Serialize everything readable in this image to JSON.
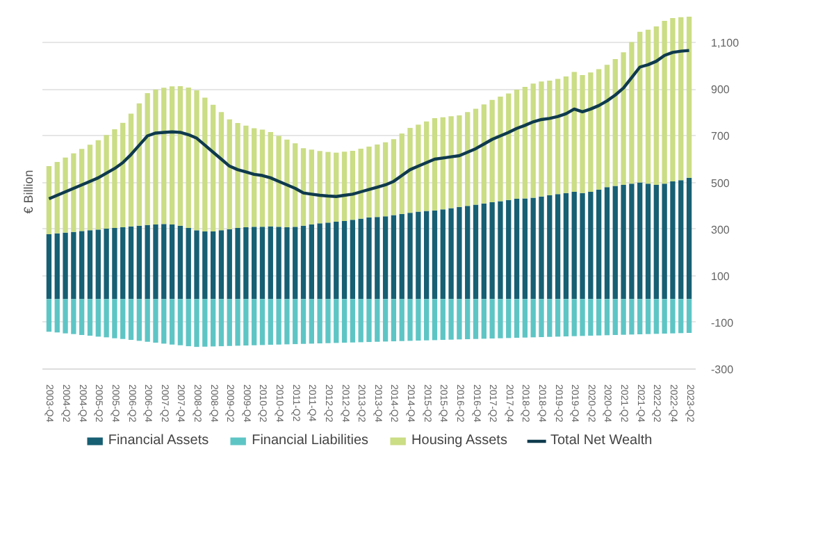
{
  "chart_data": {
    "type": "bar",
    "stacked": true,
    "ylabel": "€ Billion",
    "categories": [
      "2003-Q4",
      null,
      "2004-Q2",
      null,
      "2004-Q4",
      null,
      "2005-Q2",
      null,
      "2005-Q4",
      null,
      "2006-Q2",
      null,
      "2006-Q4",
      null,
      "2007-Q2",
      null,
      "2007-Q4",
      null,
      "2008-Q2",
      null,
      "2008-Q4",
      null,
      "2009-Q2",
      null,
      "2009-Q4",
      null,
      "2010-Q2",
      null,
      "2010-Q4",
      null,
      "2011-Q2",
      null,
      "2011-Q4",
      null,
      "2012-Q2",
      null,
      "2012-Q4",
      null,
      "2013-Q2",
      null,
      "2013-Q4",
      null,
      "2014-Q2",
      null,
      "2014-Q4",
      null,
      "2015-Q2",
      null,
      "2015-Q4",
      null,
      "2016-Q2",
      null,
      "2016-Q4",
      null,
      "2017-Q2",
      null,
      "2017-Q4",
      null,
      "2018-Q2",
      null,
      "2018-Q4",
      null,
      "2019-Q2",
      null,
      "2019-Q4",
      null,
      "2020-Q2",
      null,
      "2020-Q4",
      null,
      "2021-Q2",
      null,
      "2021-Q4",
      null,
      "2022-Q2",
      null,
      "2022-Q4",
      null,
      "2023-Q2"
    ],
    "series": [
      {
        "name": "Financial Assets",
        "color": "#175f73",
        "values": [
          278,
          282,
          285,
          288,
          292,
          295,
          298,
          302,
          305,
          308,
          312,
          315,
          318,
          320,
          322,
          320,
          315,
          305,
          295,
          290,
          290,
          295,
          300,
          305,
          308,
          310,
          310,
          312,
          310,
          308,
          310,
          315,
          320,
          325,
          328,
          332,
          335,
          340,
          345,
          350,
          352,
          355,
          360,
          365,
          370,
          375,
          378,
          380,
          385,
          390,
          395,
          400,
          405,
          410,
          415,
          420,
          425,
          430,
          432,
          435,
          440,
          445,
          450,
          455,
          460,
          455,
          460,
          470,
          480,
          485,
          490,
          495,
          500,
          495,
          490,
          495,
          505,
          510,
          520
        ]
      },
      {
        "name": "Financial Liabilities",
        "color": "#5ec5c5",
        "values": [
          -140,
          -143,
          -147,
          -150,
          -154,
          -157,
          -161,
          -164,
          -168,
          -171,
          -175,
          -179,
          -183,
          -187,
          -191,
          -195,
          -198,
          -202,
          -205,
          -204,
          -203,
          -202,
          -201,
          -200,
          -199,
          -198,
          -197,
          -196,
          -195,
          -194,
          -193,
          -192,
          -191,
          -190,
          -189,
          -188,
          -187,
          -186,
          -185,
          -184,
          -183,
          -182,
          -181,
          -180,
          -179,
          -178,
          -177,
          -176,
          -175,
          -174,
          -173,
          -172,
          -171,
          -170,
          -169,
          -168,
          -167,
          -166,
          -165,
          -164,
          -163,
          -162,
          -161,
          -160,
          -159,
          -158,
          -157,
          -156,
          -155,
          -154,
          -153,
          -152,
          -151,
          -150,
          -149,
          -148,
          -147,
          -146,
          -145
        ]
      },
      {
        "name": "Housing Assets",
        "color": "#cbdd85",
        "values": [
          292,
          306,
          322,
          337,
          352,
          367,
          383,
          402,
          423,
          448,
          483,
          524,
          565,
          579,
          584,
          592,
          598,
          602,
          600,
          574,
          543,
          507,
          471,
          450,
          436,
          423,
          417,
          404,
          390,
          376,
          358,
          332,
          321,
          310,
          303,
          296,
          297,
          296,
          300,
          304,
          311,
          317,
          326,
          345,
          364,
          373,
          384,
          396,
          395,
          394,
          393,
          402,
          411,
          425,
          439,
          448,
          457,
          468,
          478,
          489,
          493,
          492,
          494,
          500,
          514,
          506,
          512,
          516,
          525,
          544,
          568,
          607,
          646,
          660,
          679,
          698,
          700,
          699,
          691
        ]
      },
      {
        "name": "Total Net Wealth",
        "type": "line",
        "color": "#0f3a4d",
        "values": [
          430,
          445,
          460,
          475,
          490,
          505,
          520,
          540,
          560,
          585,
          620,
          660,
          700,
          712,
          715,
          717,
          715,
          705,
          690,
          660,
          630,
          600,
          570,
          555,
          545,
          535,
          530,
          520,
          505,
          490,
          475,
          455,
          450,
          445,
          442,
          440,
          445,
          450,
          460,
          470,
          480,
          490,
          505,
          530,
          555,
          570,
          585,
          600,
          605,
          610,
          615,
          630,
          645,
          665,
          685,
          700,
          715,
          732,
          745,
          760,
          770,
          775,
          783,
          795,
          815,
          803,
          815,
          830,
          850,
          875,
          905,
          950,
          995,
          1005,
          1020,
          1045,
          1058,
          1063,
          1066
        ]
      }
    ],
    "ylim": [
      -300,
      1220
    ],
    "yticks": [
      -300,
      -100,
      100,
      300,
      500,
      700,
      900,
      {
        "value": 1100,
        "label": "1,100"
      }
    ],
    "grid": "y",
    "legend": "bottom"
  }
}
